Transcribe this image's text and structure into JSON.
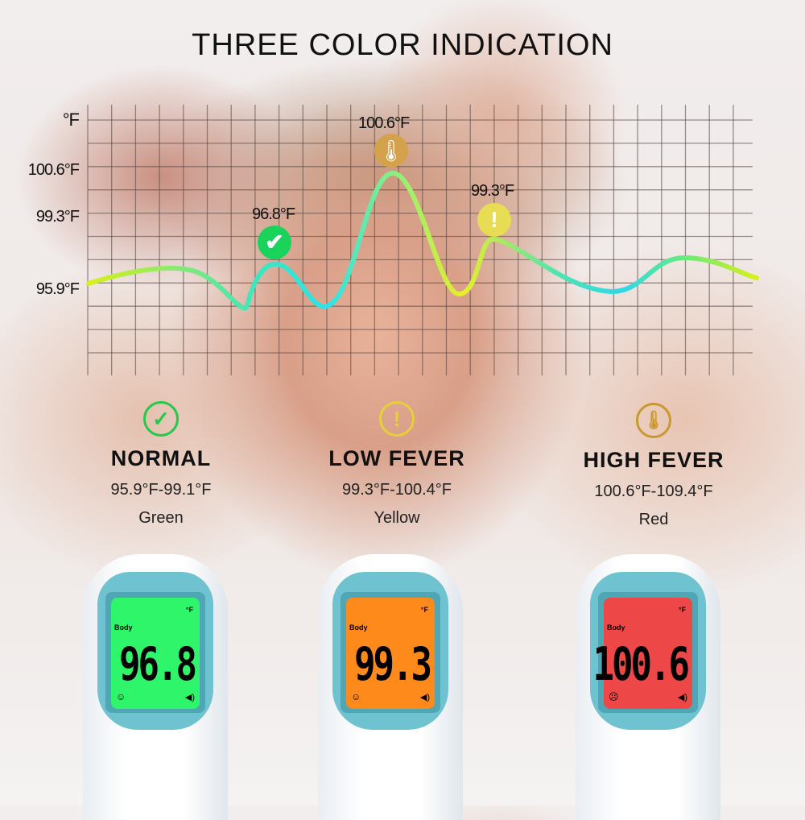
{
  "title": "THREE COLOR INDICATION",
  "chart": {
    "unit_label": "°F",
    "y_labels": [
      "100.6°F",
      "99.3°F",
      "95.9°F"
    ],
    "annotations": [
      {
        "label": "96.8°F",
        "icon": "check-icon",
        "color": "#19d35a"
      },
      {
        "label": "100.6°F",
        "icon": "thermometer-icon",
        "color": "#d4a24a"
      },
      {
        "label": "99.3°F",
        "icon": "exclamation-icon",
        "color": "#e9dc55"
      }
    ]
  },
  "categories": [
    {
      "name": "NORMAL",
      "range": "95.9°F-99.1°F",
      "color": "Green",
      "icon": "check-icon",
      "hex": "#22c94a"
    },
    {
      "name": "LOW FEVER",
      "range": "99.3°F-100.4°F",
      "color": "Yellow",
      "icon": "exclamation-icon",
      "hex": "#e6cf3a"
    },
    {
      "name": "HIGH FEVER",
      "range": "100.6°F-109.4°F",
      "color": "Red",
      "icon": "thermometer-icon",
      "hex": "#c9982f"
    }
  ],
  "devices": [
    {
      "unit": "°F",
      "mode": "Body",
      "reading": "96.8",
      "screen": "#2ef56a",
      "face": "smile-icon"
    },
    {
      "unit": "°F",
      "mode": "Body",
      "reading": "99.3",
      "screen": "#ff8a1c",
      "face": "smile-icon"
    },
    {
      "unit": "°F",
      "mode": "Body",
      "reading": "100.6",
      "screen": "#ee4747",
      "face": "frown-icon"
    }
  ]
}
